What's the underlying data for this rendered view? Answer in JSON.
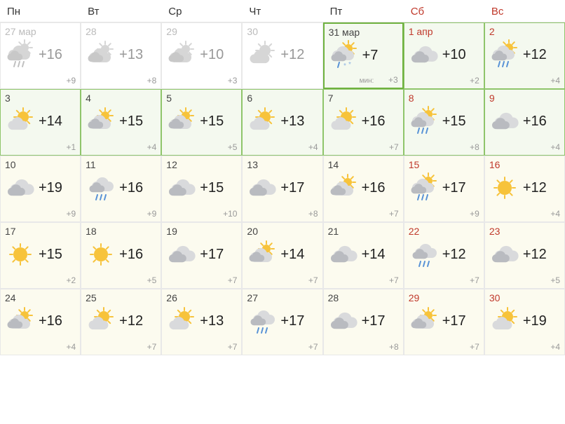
{
  "headers": [
    {
      "label": "Пн",
      "weekend": false
    },
    {
      "label": "Вт",
      "weekend": false
    },
    {
      "label": "Ср",
      "weekend": false
    },
    {
      "label": "Чт",
      "weekend": false
    },
    {
      "label": "Пт",
      "weekend": false
    },
    {
      "label": "Сб",
      "weekend": true
    },
    {
      "label": "Вс",
      "weekend": true
    }
  ],
  "days": [
    {
      "date": "27 мар",
      "weekend": false,
      "past": true,
      "icon": "cloud-sun-rain",
      "hi": "+16",
      "lo": "+9",
      "style": "none"
    },
    {
      "date": "28",
      "weekend": false,
      "past": true,
      "icon": "cloud-sun",
      "hi": "+13",
      "lo": "+8",
      "style": "none"
    },
    {
      "date": "29",
      "weekend": false,
      "past": true,
      "icon": "cloud-sun",
      "hi": "+10",
      "lo": "+3",
      "style": "none"
    },
    {
      "date": "30",
      "weekend": false,
      "past": true,
      "icon": "partly",
      "hi": "+12",
      "lo": "",
      "style": "none"
    },
    {
      "date": "31 мар",
      "weekend": false,
      "past": false,
      "icon": "cloud-sun-sleet",
      "hi": "+7",
      "lo": "+3",
      "low_label": "мин:",
      "style": "today"
    },
    {
      "date": "1 апр",
      "weekend": true,
      "past": false,
      "icon": "cloud",
      "hi": "+10",
      "lo": "+2",
      "style": "green"
    },
    {
      "date": "2",
      "weekend": true,
      "past": false,
      "icon": "cloud-sun-rain",
      "hi": "+12",
      "lo": "+4",
      "style": "green"
    },
    {
      "date": "3",
      "weekend": false,
      "past": false,
      "icon": "partly",
      "hi": "+14",
      "lo": "+1",
      "style": "green"
    },
    {
      "date": "4",
      "weekend": false,
      "past": false,
      "icon": "cloud-sun",
      "hi": "+15",
      "lo": "+4",
      "style": "green"
    },
    {
      "date": "5",
      "weekend": false,
      "past": false,
      "icon": "cloud-sun",
      "hi": "+15",
      "lo": "+5",
      "style": "green"
    },
    {
      "date": "6",
      "weekend": false,
      "past": false,
      "icon": "partly",
      "hi": "+13",
      "lo": "+4",
      "style": "green"
    },
    {
      "date": "7",
      "weekend": false,
      "past": false,
      "icon": "partly",
      "hi": "+16",
      "lo": "+7",
      "style": "green"
    },
    {
      "date": "8",
      "weekend": true,
      "past": false,
      "icon": "cloud-sun-rain",
      "hi": "+15",
      "lo": "+8",
      "style": "green"
    },
    {
      "date": "9",
      "weekend": true,
      "past": false,
      "icon": "cloud",
      "hi": "+16",
      "lo": "+4",
      "style": "green"
    },
    {
      "date": "10",
      "weekend": false,
      "past": false,
      "icon": "cloud",
      "hi": "+19",
      "lo": "+9",
      "style": "yellow"
    },
    {
      "date": "11",
      "weekend": false,
      "past": false,
      "icon": "cloud-rain",
      "hi": "+16",
      "lo": "+9",
      "style": "yellow"
    },
    {
      "date": "12",
      "weekend": false,
      "past": false,
      "icon": "cloud",
      "hi": "+15",
      "lo": "+10",
      "style": "yellow"
    },
    {
      "date": "13",
      "weekend": false,
      "past": false,
      "icon": "cloud",
      "hi": "+17",
      "lo": "+8",
      "style": "yellow"
    },
    {
      "date": "14",
      "weekend": false,
      "past": false,
      "icon": "cloud-sun",
      "hi": "+16",
      "lo": "+7",
      "style": "yellow"
    },
    {
      "date": "15",
      "weekend": true,
      "past": false,
      "icon": "cloud-sun-rain",
      "hi": "+17",
      "lo": "+9",
      "style": "yellow"
    },
    {
      "date": "16",
      "weekend": true,
      "past": false,
      "icon": "sun",
      "hi": "+12",
      "lo": "+4",
      "style": "yellow"
    },
    {
      "date": "17",
      "weekend": false,
      "past": false,
      "icon": "sun",
      "hi": "+15",
      "lo": "+2",
      "style": "yellow"
    },
    {
      "date": "18",
      "weekend": false,
      "past": false,
      "icon": "sun",
      "hi": "+16",
      "lo": "+5",
      "style": "yellow"
    },
    {
      "date": "19",
      "weekend": false,
      "past": false,
      "icon": "cloud",
      "hi": "+17",
      "lo": "+7",
      "style": "yellow"
    },
    {
      "date": "20",
      "weekend": false,
      "past": false,
      "icon": "cloud-sun",
      "hi": "+14",
      "lo": "+7",
      "style": "yellow"
    },
    {
      "date": "21",
      "weekend": false,
      "past": false,
      "icon": "cloud",
      "hi": "+14",
      "lo": "+7",
      "style": "yellow"
    },
    {
      "date": "22",
      "weekend": true,
      "past": false,
      "icon": "cloud-rain",
      "hi": "+12",
      "lo": "+7",
      "style": "yellow"
    },
    {
      "date": "23",
      "weekend": true,
      "past": false,
      "icon": "cloud",
      "hi": "+12",
      "lo": "+5",
      "style": "yellow"
    },
    {
      "date": "24",
      "weekend": false,
      "past": false,
      "icon": "cloud-sun",
      "hi": "+16",
      "lo": "+4",
      "style": "yellow"
    },
    {
      "date": "25",
      "weekend": false,
      "past": false,
      "icon": "partly",
      "hi": "+12",
      "lo": "+7",
      "style": "yellow"
    },
    {
      "date": "26",
      "weekend": false,
      "past": false,
      "icon": "partly",
      "hi": "+13",
      "lo": "+7",
      "style": "yellow"
    },
    {
      "date": "27",
      "weekend": false,
      "past": false,
      "icon": "cloud-rain",
      "hi": "+17",
      "lo": "+7",
      "style": "yellow"
    },
    {
      "date": "28",
      "weekend": false,
      "past": false,
      "icon": "cloud",
      "hi": "+17",
      "lo": "+8",
      "style": "yellow"
    },
    {
      "date": "29",
      "weekend": true,
      "past": false,
      "icon": "cloud-sun",
      "hi": "+17",
      "lo": "+7",
      "style": "yellow"
    },
    {
      "date": "30",
      "weekend": true,
      "past": false,
      "icon": "partly",
      "hi": "+19",
      "lo": "+4",
      "style": "yellow"
    }
  ],
  "colors": {
    "sun": "#f7c33b",
    "cloud_light": "#d9dadc",
    "cloud_dark": "#b9bbc0",
    "rain": "#5892d6",
    "snow": "#8fb4e4"
  }
}
